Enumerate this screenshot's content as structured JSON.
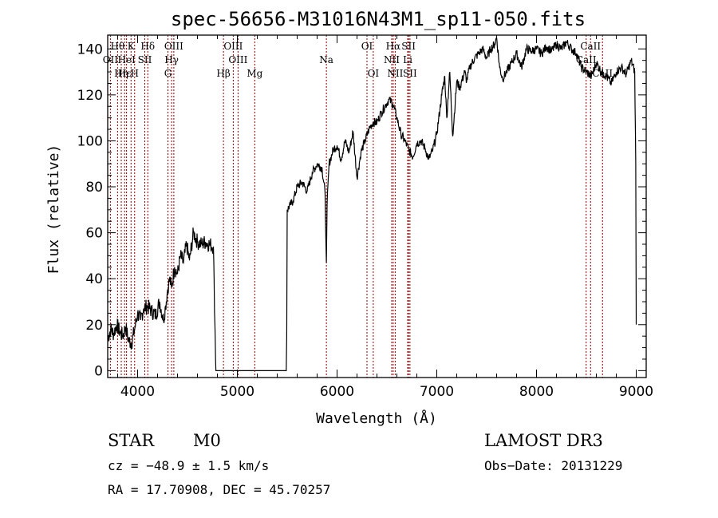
{
  "chart_data": {
    "type": "line",
    "title": "spec-56656-M31016N43M1_sp11-050.fits",
    "xlabel": "Wavelength (Å)",
    "ylabel": "Flux (relative)",
    "xlim": [
      3700,
      9100
    ],
    "ylim": [
      -3,
      146
    ],
    "xticks": [
      4000,
      5000,
      6000,
      7000,
      8000,
      9000
    ],
    "xtick_labels": [
      "4000",
      "5000",
      "6000",
      "7000",
      "8000",
      "9000"
    ],
    "yticks": [
      0,
      20,
      40,
      60,
      80,
      100,
      120,
      140
    ],
    "ytick_labels": [
      "0",
      "20",
      "40",
      "60",
      "80",
      "100",
      "120",
      "140"
    ],
    "series": [
      {
        "name": "flux",
        "x": [
          3700,
          3730,
          3760,
          3790,
          3820,
          3850,
          3880,
          3910,
          3940,
          3970,
          4000,
          4030,
          4060,
          4100,
          4140,
          4180,
          4220,
          4260,
          4280,
          4300,
          4320,
          4340,
          4370,
          4400,
          4430,
          4460,
          4490,
          4520,
          4560,
          4600,
          4640,
          4680,
          4720,
          4760,
          4775,
          4785,
          5490,
          5495,
          5500,
          5530,
          5560,
          5600,
          5650,
          5700,
          5750,
          5800,
          5850,
          5880,
          5893,
          5900,
          5920,
          5960,
          6000,
          6040,
          6080,
          6120,
          6160,
          6200,
          6240,
          6280,
          6320,
          6360,
          6400,
          6440,
          6480,
          6520,
          6560,
          6600,
          6640,
          6680,
          6720,
          6760,
          6800,
          6840,
          6880,
          6920,
          6960,
          7000,
          7050,
          7080,
          7100,
          7130,
          7160,
          7200,
          7230,
          7280,
          7300,
          7330,
          7380,
          7420,
          7460,
          7500,
          7540,
          7580,
          7600,
          7630,
          7660,
          7700,
          7750,
          7800,
          7850,
          7900,
          7950,
          8000,
          8050,
          8100,
          8150,
          8200,
          8250,
          8300,
          8350,
          8400,
          8450,
          8500,
          8550,
          8600,
          8650,
          8700,
          8750,
          8800,
          8850,
          8900,
          8950,
          8985,
          8995,
          9000
        ],
        "y": [
          14,
          18,
          16,
          20,
          17,
          15,
          19,
          13,
          12,
          18,
          25,
          22,
          27,
          28,
          26,
          24,
          30,
          22,
          28,
          35,
          40,
          36,
          45,
          42,
          50,
          47,
          55,
          48,
          60,
          56,
          55,
          56,
          55,
          54,
          20,
          0,
          0,
          15,
          70,
          72,
          74,
          80,
          82,
          78,
          86,
          90,
          88,
          77,
          47,
          72,
          90,
          96,
          98,
          92,
          100,
          95,
          104,
          84,
          95,
          100,
          105,
          108,
          108,
          112,
          115,
          118,
          116,
          110,
          103,
          100,
          96,
          93,
          99,
          100,
          97,
          92,
          96,
          103,
          120,
          128,
          110,
          130,
          102,
          126,
          123,
          130,
          126,
          132,
          136,
          138,
          140,
          136,
          140,
          142,
          145,
          132,
          127,
          130,
          134,
          138,
          132,
          140,
          139,
          140,
          138,
          141,
          139,
          142,
          140,
          143,
          140,
          138,
          132,
          130,
          128,
          134,
          130,
          128,
          125,
          130,
          132,
          129,
          135,
          130,
          90,
          20
        ]
      }
    ],
    "gap": [
      4785,
      5490
    ],
    "lines": [
      {
        "wl": 3727,
        "labels": [
          "OII"
        ]
      },
      {
        "wl": 3799,
        "labels": [
          "Hθ"
        ]
      },
      {
        "wl": 3836,
        "labels": [
          "Hη"
        ]
      },
      {
        "wl": 3870,
        "labels": [
          "Hε"
        ]
      },
      {
        "wl": 3889,
        "labels": [
          "HeI"
        ]
      },
      {
        "wl": 3934,
        "labels": [
          "K"
        ]
      },
      {
        "wl": 3970,
        "labels": [
          "H"
        ]
      },
      {
        "wl": 4072,
        "labels": [
          "SII"
        ]
      },
      {
        "wl": 4102,
        "labels": [
          "Hδ"
        ]
      },
      {
        "wl": 4304,
        "labels": [
          "G"
        ]
      },
      {
        "wl": 4341,
        "labels": [
          "Hγ"
        ]
      },
      {
        "wl": 4363,
        "labels": [
          "OIII"
        ]
      },
      {
        "wl": 4861,
        "labels": [
          "Hβ"
        ]
      },
      {
        "wl": 4959,
        "labels": [
          "OIII"
        ]
      },
      {
        "wl": 5007,
        "labels": [
          "OIII"
        ]
      },
      {
        "wl": 5175,
        "labels": [
          "Mg"
        ]
      },
      {
        "wl": 5893,
        "labels": [
          "Na"
        ]
      },
      {
        "wl": 6300,
        "labels": [
          "OI"
        ]
      },
      {
        "wl": 6363,
        "labels": [
          "OI"
        ]
      },
      {
        "wl": 6548,
        "labels": [
          "NII"
        ]
      },
      {
        "wl": 6563,
        "labels": [
          "Hα"
        ]
      },
      {
        "wl": 6583,
        "labels": [
          "NII"
        ]
      },
      {
        "wl": 6708,
        "labels": [
          "Li"
        ]
      },
      {
        "wl": 6717,
        "labels": [
          "SII"
        ]
      },
      {
        "wl": 6731,
        "labels": [
          "SII"
        ]
      },
      {
        "wl": 8498,
        "labels": [
          "CaII"
        ]
      },
      {
        "wl": 8542,
        "labels": [
          "CaII"
        ]
      },
      {
        "wl": 8662,
        "labels": [
          "CaII"
        ]
      }
    ],
    "line_labels": [
      {
        "text": "Hθ",
        "wl": 3799,
        "row": 0
      },
      {
        "text": "K",
        "wl": 3934,
        "row": 0
      },
      {
        "text": "Hδ",
        "wl": 4102,
        "row": 0
      },
      {
        "text": "OIII",
        "wl": 4363,
        "row": 0
      },
      {
        "text": "OIII",
        "wl": 4959,
        "row": 0
      },
      {
        "text": "OI",
        "wl": 6300,
        "row": 0
      },
      {
        "text": "Hα",
        "wl": 6563,
        "row": 0
      },
      {
        "text": "SII",
        "wl": 6717,
        "row": 0
      },
      {
        "text": "CaII",
        "wl": 8542,
        "row": 0
      },
      {
        "text": "OII",
        "wl": 3727,
        "row": 1
      },
      {
        "text": "HeI",
        "wl": 3889,
        "row": 1
      },
      {
        "text": "SII",
        "wl": 4072,
        "row": 1
      },
      {
        "text": "Hγ",
        "wl": 4341,
        "row": 1
      },
      {
        "text": "OIII",
        "wl": 5007,
        "row": 1
      },
      {
        "text": "Na",
        "wl": 5893,
        "row": 1
      },
      {
        "text": "NII",
        "wl": 6548,
        "row": 1
      },
      {
        "text": "Li",
        "wl": 6708,
        "row": 1
      },
      {
        "text": "CaII",
        "wl": 8498,
        "row": 1
      },
      {
        "text": "Hε",
        "wl": 3870,
        "row": 2
      },
      {
        "text": "Hη",
        "wl": 3836,
        "row": 2
      },
      {
        "text": "H",
        "wl": 3970,
        "row": 2
      },
      {
        "text": "G",
        "wl": 4304,
        "row": 2
      },
      {
        "text": "Hβ",
        "wl": 4861,
        "row": 2
      },
      {
        "text": "Mg",
        "wl": 5175,
        "row": 2
      },
      {
        "text": "OI",
        "wl": 6363,
        "row": 2
      },
      {
        "text": "NII",
        "wl": 6583,
        "row": 2
      },
      {
        "text": "SII",
        "wl": 6731,
        "row": 2
      },
      {
        "text": "CaII",
        "wl": 8662,
        "row": 2
      }
    ],
    "line_color": "#8b0000",
    "curve_color": "#000000"
  },
  "info": {
    "class": "STAR",
    "subclass": "M0",
    "survey": "LAMOST DR3",
    "cz": "cz = −48.9 ± 1.5 km/s",
    "obs_date": "Obs−Date: 20131229",
    "coords": "RA =  17.70908, DEC =  45.70257"
  }
}
